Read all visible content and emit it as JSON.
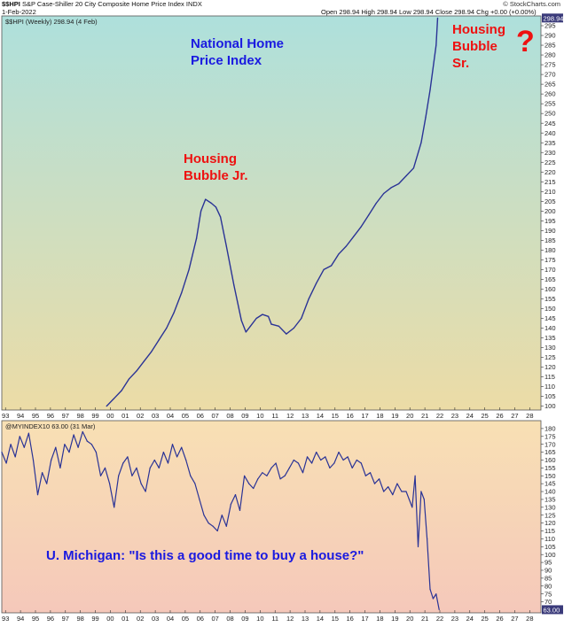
{
  "header": {
    "symbol": "$$HPI",
    "description": "S&P Case-Shiller 20 City Composite Home Price Index",
    "exchange": "INDX",
    "date": "1-Feb-2022",
    "quote": "Open 298.94 High 298.94 Low 298.94 Close 298.94 Chg +0.00 (+0.00%)",
    "source": "© StockCharts.com"
  },
  "colors": {
    "line": "#2a3396",
    "top_panel_top": "#aee0dc",
    "top_panel_bottom": "#ecdca6",
    "bottom_panel_top": "#f8e0b4",
    "bottom_panel_bottom": "#f5c8ba",
    "annotation_red": "#ee1111",
    "annotation_blue": "#1a1ae0",
    "price_box": "#3a3a7a"
  },
  "chart_data": [
    {
      "type": "line",
      "legend": "$$HPI (Weekly) 298.94 (4 Feb)",
      "last_value_label": "298.94",
      "x_tick_labels": [
        "93",
        "94",
        "95",
        "96",
        "97",
        "98",
        "99",
        "00",
        "01",
        "02",
        "03",
        "04",
        "05",
        "06",
        "07",
        "08",
        "09",
        "10",
        "11",
        "12",
        "13",
        "14",
        "15",
        "16",
        "17",
        "18",
        "19",
        "20",
        "21",
        "22",
        "23",
        "24",
        "25",
        "26",
        "27",
        "28"
      ],
      "xlim": [
        1993,
        2029
      ],
      "ylim": [
        98,
        300
      ],
      "y_ticks": [
        100,
        105,
        110,
        115,
        120,
        125,
        130,
        135,
        140,
        145,
        150,
        155,
        160,
        165,
        170,
        175,
        180,
        185,
        190,
        195,
        200,
        205,
        210,
        215,
        220,
        225,
        230,
        235,
        240,
        245,
        250,
        255,
        260,
        265,
        270,
        275,
        280,
        285,
        290,
        295
      ],
      "grid": false,
      "series": [
        {
          "x": [
            2000.0,
            2000.5,
            2001.0,
            2001.5,
            2002.0,
            2002.5,
            2003.0,
            2003.5,
            2004.0,
            2004.5,
            2005.0,
            2005.5,
            2006.0,
            2006.3,
            2006.6,
            2007.0,
            2007.3,
            2007.6,
            2008.0,
            2008.5,
            2009.0,
            2009.3,
            2009.6,
            2010.0,
            2010.4,
            2010.8,
            2011.0,
            2011.5,
            2012.0,
            2012.5,
            2013.0,
            2013.5,
            2014.0,
            2014.5,
            2015.0,
            2015.5,
            2016.0,
            2016.5,
            2017.0,
            2017.5,
            2018.0,
            2018.5,
            2019.0,
            2019.5,
            2020.0,
            2020.5,
            2021.0,
            2021.3,
            2021.6,
            2022.0,
            2022.1
          ],
          "y": [
            100,
            104,
            108,
            114,
            118,
            123,
            128,
            134,
            140,
            148,
            158,
            170,
            186,
            200,
            206,
            204,
            202,
            197,
            182,
            162,
            144,
            138,
            141,
            145,
            147,
            146,
            142,
            141,
            137,
            140,
            145,
            155,
            163,
            170,
            172,
            178,
            182,
            187,
            192,
            198,
            204,
            209,
            212,
            214,
            218,
            222,
            235,
            248,
            262,
            285,
            298.94
          ]
        }
      ],
      "annotations": [
        "National Home Price Index",
        "Housing Bubble Jr.",
        "Housing Bubble Sr.",
        "?"
      ]
    },
    {
      "type": "line",
      "legend": "@MYINDEX10 63.00 (31 Mar)",
      "last_value_label": "63.00",
      "x_tick_labels": [
        "93",
        "94",
        "95",
        "96",
        "97",
        "98",
        "99",
        "00",
        "01",
        "02",
        "03",
        "04",
        "05",
        "06",
        "07",
        "08",
        "09",
        "10",
        "11",
        "12",
        "13",
        "14",
        "15",
        "16",
        "17",
        "18",
        "19",
        "20",
        "21",
        "22",
        "23",
        "24",
        "25",
        "26",
        "27",
        "28"
      ],
      "xlim": [
        1993,
        2029
      ],
      "ylim": [
        63,
        185
      ],
      "y_ticks": [
        70,
        75,
        80,
        85,
        90,
        95,
        100,
        105,
        110,
        115,
        120,
        125,
        130,
        135,
        140,
        145,
        150,
        155,
        160,
        165,
        170,
        175,
        180
      ],
      "grid": false,
      "series": [
        {
          "x": [
            1993.0,
            1993.3,
            1993.6,
            1993.9,
            1994.2,
            1994.5,
            1994.8,
            1995.1,
            1995.4,
            1995.7,
            1996.0,
            1996.3,
            1996.6,
            1996.9,
            1997.2,
            1997.5,
            1997.8,
            1998.1,
            1998.4,
            1998.7,
            1999.0,
            1999.3,
            1999.6,
            1999.9,
            2000.2,
            2000.5,
            2000.8,
            2001.1,
            2001.4,
            2001.7,
            2002.0,
            2002.3,
            2002.6,
            2002.9,
            2003.2,
            2003.5,
            2003.8,
            2004.1,
            2004.4,
            2004.7,
            2005.0,
            2005.3,
            2005.6,
            2005.9,
            2006.2,
            2006.5,
            2006.8,
            2007.1,
            2007.4,
            2007.7,
            2008.0,
            2008.3,
            2008.6,
            2008.9,
            2009.2,
            2009.5,
            2009.8,
            2010.1,
            2010.4,
            2010.7,
            2011.0,
            2011.3,
            2011.6,
            2011.9,
            2012.2,
            2012.5,
            2012.8,
            2013.1,
            2013.4,
            2013.7,
            2014.0,
            2014.3,
            2014.6,
            2014.9,
            2015.2,
            2015.5,
            2015.8,
            2016.1,
            2016.4,
            2016.7,
            2017.0,
            2017.3,
            2017.6,
            2017.9,
            2018.2,
            2018.5,
            2018.8,
            2019.1,
            2019.4,
            2019.7,
            2020.0,
            2020.2,
            2020.4,
            2020.6,
            2020.8,
            2021.0,
            2021.2,
            2021.4,
            2021.6,
            2021.8,
            2022.0,
            2022.2
          ],
          "y": [
            165,
            158,
            170,
            162,
            175,
            168,
            177,
            160,
            138,
            152,
            145,
            160,
            168,
            155,
            170,
            165,
            176,
            168,
            178,
            172,
            170,
            165,
            150,
            155,
            145,
            130,
            150,
            158,
            162,
            150,
            155,
            145,
            140,
            155,
            160,
            155,
            165,
            158,
            170,
            162,
            168,
            160,
            150,
            145,
            135,
            125,
            120,
            118,
            115,
            125,
            118,
            132,
            138,
            128,
            150,
            145,
            142,
            148,
            152,
            150,
            155,
            158,
            148,
            150,
            155,
            160,
            158,
            152,
            162,
            158,
            165,
            160,
            162,
            155,
            158,
            165,
            160,
            162,
            155,
            160,
            158,
            150,
            152,
            145,
            148,
            140,
            143,
            138,
            145,
            140,
            140,
            135,
            130,
            150,
            105,
            140,
            135,
            110,
            78,
            72,
            75,
            65
          ]
        }
      ],
      "annotations": [
        "U. Michigan: \"Is this a good time to buy a house?\""
      ]
    }
  ]
}
